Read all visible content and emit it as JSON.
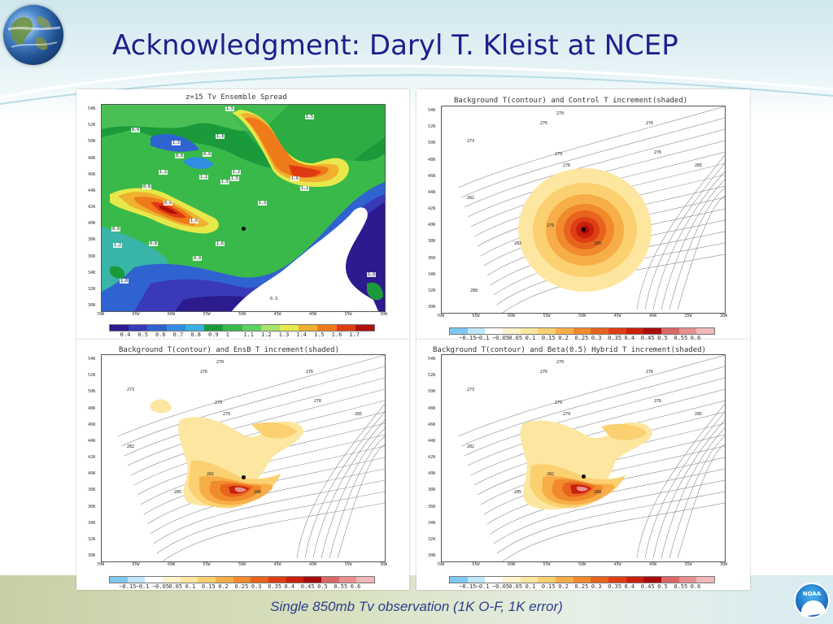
{
  "slide": {
    "title": "Acknowledgment: Daryl T. Kleist at NCEP",
    "caption": "Single 850mb Tv observation (1K O-F, 1K error)",
    "logo_text": "NOAA"
  },
  "axes": {
    "lat_labels": [
      "54N",
      "52N",
      "50N",
      "48N",
      "46N",
      "44N",
      "42N",
      "40N",
      "38N",
      "36N",
      "34N",
      "32N",
      "30N"
    ],
    "lon_labels": [
      "70W",
      "65W",
      "60W",
      "55W",
      "50W",
      "45W",
      "40W",
      "35W",
      "30W"
    ]
  },
  "panels": {
    "top_left": {
      "title": "z=15 Tv Ensemble Spread",
      "colorbar_ticks": [
        "0.4",
        "0.5",
        "0.6",
        "0.7",
        "0.8",
        "0.9",
        "1",
        "1.1",
        "1.2",
        "1.3",
        "1.4",
        "1.5",
        "1.6",
        "1.7"
      ],
      "colorbar_colors": [
        "#2b1b8f",
        "#3a3ab8",
        "#2f63d0",
        "#2f8ee0",
        "#3ab0e8",
        "#1a9a3a",
        "#39b94a",
        "#5fd05f",
        "#a8e46a",
        "#e8e84a",
        "#f0b030",
        "#ee7a1a",
        "#e03a14",
        "#b0100a"
      ],
      "contour_labels": [
        "1.5",
        "1.5",
        "0.9",
        "1.3",
        "1.3",
        "0.9",
        "0.9",
        "1.2",
        "1.2",
        "1.2",
        "1.6",
        "1.5",
        "1.5",
        "1.3",
        "1.2",
        "0.8",
        "0.9",
        "1.0",
        "0.9",
        "1.2",
        "0.8",
        "0.9",
        "1.6",
        "1.3",
        "1.0",
        "0.3"
      ]
    },
    "top_right": {
      "title": "Background T(contour) and Control T increment(shaded)",
      "colorbar_ticks": [
        "−0.15",
        "−0.1",
        "−0.05",
        "0.05",
        "0.1",
        "0.15",
        "0.2",
        "0.25",
        "0.3",
        "0.35",
        "0.4",
        "0.45",
        "0.5",
        "0.55",
        "0.6"
      ],
      "contour_labels": [
        "270",
        "276",
        "273",
        "276",
        "279",
        "276",
        "282",
        "276",
        "279",
        "285",
        "282",
        "285",
        "288"
      ]
    },
    "bottom_left": {
      "title": "Background T(contour) and EnsB T increment(shaded)",
      "colorbar_ticks": [
        "−0.15",
        "−0.1",
        "−0.05",
        "0.05",
        "0.1",
        "0.15",
        "0.2",
        "0.25",
        "0.3",
        "0.35",
        "0.4",
        "0.45",
        "0.5",
        "0.55",
        "0.6"
      ],
      "contour_labels": [
        "270",
        "276",
        "273",
        "276",
        "279",
        "276",
        "282",
        "279",
        "282",
        "285",
        "285",
        "288"
      ]
    },
    "bottom_right": {
      "title": "Background T(contour) and Beta(0.5) Hybrid T increment(shaded)",
      "colorbar_ticks": [
        "−0.15",
        "−0.1",
        "−0.05",
        "0.05",
        "0.1",
        "0.15",
        "0.2",
        "0.25",
        "0.3",
        "0.35",
        "0.4",
        "0.45",
        "0.5",
        "0.55",
        "0.6"
      ],
      "contour_labels": [
        "270",
        "276",
        "273",
        "276",
        "279",
        "276",
        "282",
        "279",
        "282",
        "285",
        "285",
        "288"
      ]
    },
    "increment_colors": [
      "#7ec8f0",
      "#bfe6fa",
      "#ffffff",
      "#fff4c8",
      "#fde6a0",
      "#fbd070",
      "#f7ae48",
      "#f08a2c",
      "#e8641e",
      "#de3e14",
      "#c8200c",
      "#a80c0a",
      "#d86868",
      "#e89090",
      "#f0b8b8"
    ]
  }
}
